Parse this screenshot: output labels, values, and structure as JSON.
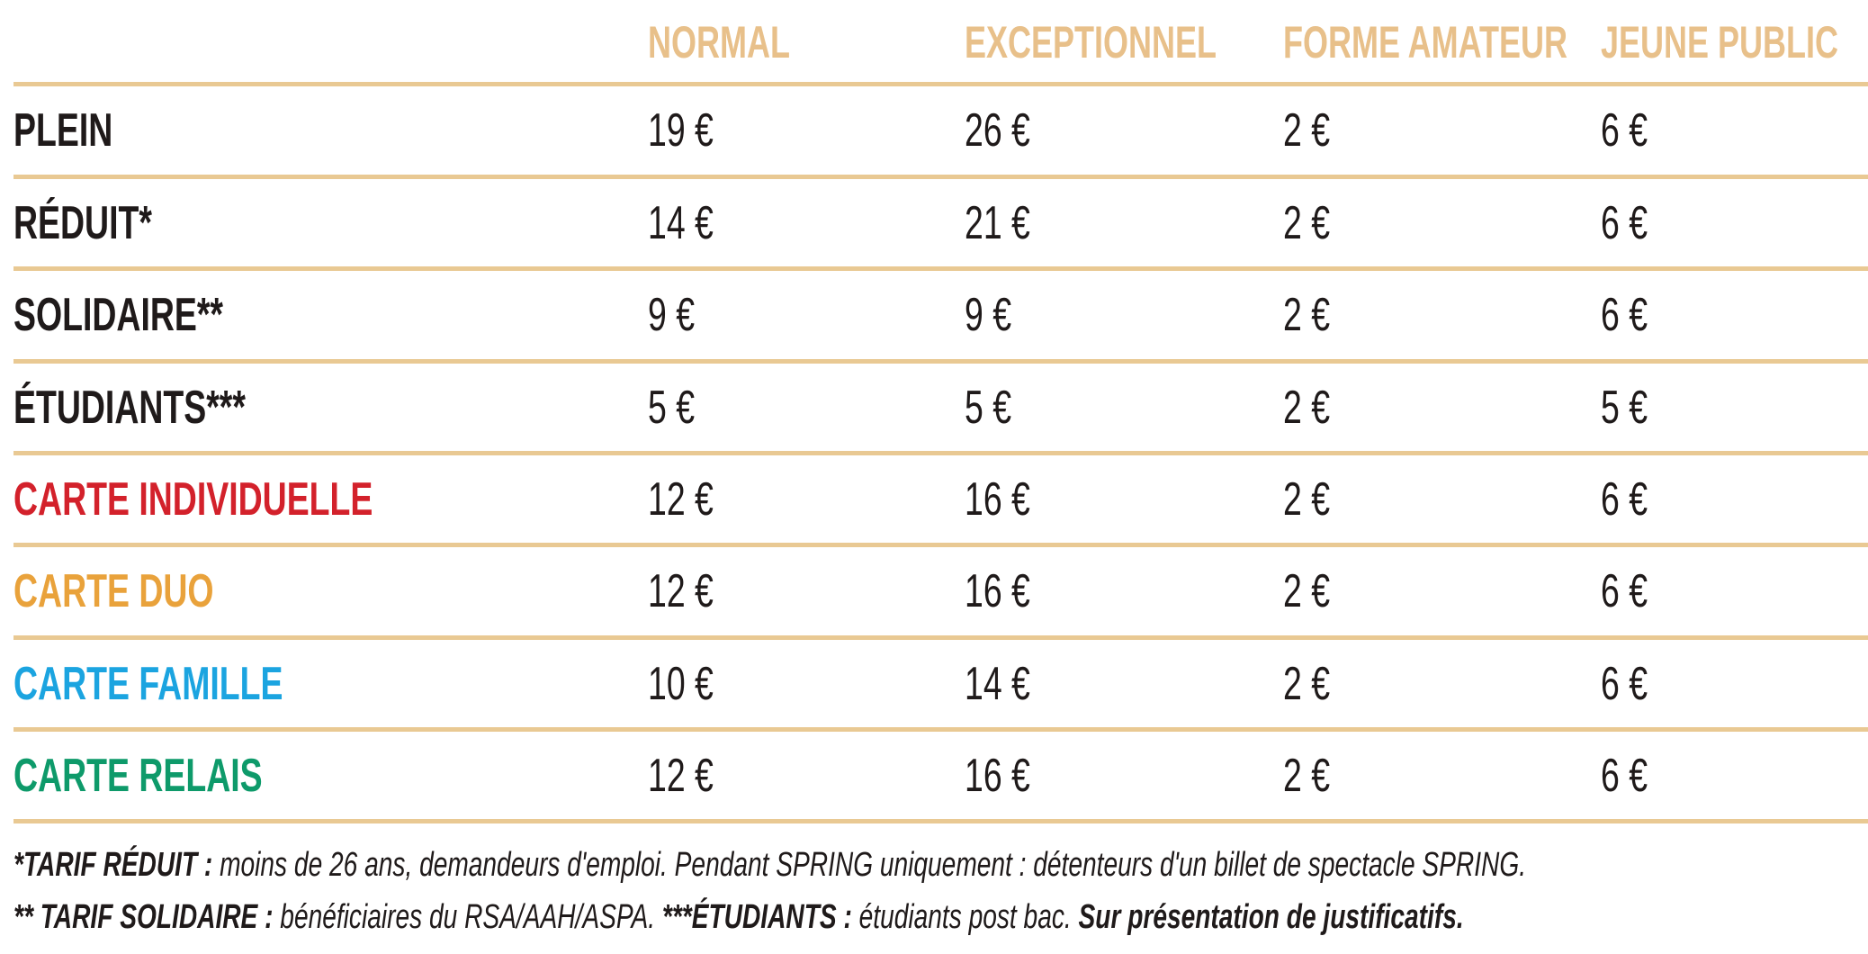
{
  "columns": [
    "NORMAL",
    "EXCEPTIONNEL",
    "FORME AMATEUR",
    "JEUNE PUBLIC"
  ],
  "colors": {
    "header": "#e8c08a",
    "divider": "#e9c993",
    "text": "#1f1a1a",
    "carte_individuelle": "#d3212b",
    "carte_duo": "#e9a23b",
    "carte_famille": "#1ba4e0",
    "carte_relais": "#0e9a6a"
  },
  "rows": [
    {
      "label": "PLEIN",
      "values": [
        "19 €",
        "26 €",
        "2 €",
        "6 €"
      ]
    },
    {
      "label": "RÉDUIT*",
      "values": [
        "14 €",
        "21 €",
        "2 €",
        "6 €"
      ]
    },
    {
      "label": "SOLIDAIRE**",
      "values": [
        "9 €",
        "9 €",
        "2 €",
        "6 €"
      ]
    },
    {
      "label": "ÉTUDIANTS***",
      "values": [
        "5 €",
        "5 €",
        "2 €",
        "5 €"
      ]
    },
    {
      "label": "CARTE INDIVIDUELLE",
      "values": [
        "12 €",
        "16 €",
        "2 €",
        "6 €"
      ]
    },
    {
      "label": "CARTE DUO",
      "values": [
        "12 €",
        "16 €",
        "2 €",
        "6 €"
      ]
    },
    {
      "label": "CARTE FAMILLE",
      "values": [
        "10 €",
        "14 €",
        "2 €",
        "6 €"
      ]
    },
    {
      "label": "CARTE RELAIS",
      "values": [
        "12 €",
        "16 €",
        "2 €",
        "6 €"
      ]
    }
  ],
  "notes": {
    "line1_bold": "*TARIF RÉDUIT :",
    "line1_text": " moins de 26 ans, demandeurs d'emploi. Pendant SPRING uniquement : détenteurs d'un billet de spectacle SPRING.",
    "line2_bold1": "** TARIF SOLIDAIRE :",
    "line2_text1": " bénéficiaires du RSA/AAH/ASPA. ",
    "line2_bold2": "***ÉTUDIANTS :",
    "line2_text2": " étudiants post bac. ",
    "line2_bold3": "Sur présentation de justificatifs."
  }
}
